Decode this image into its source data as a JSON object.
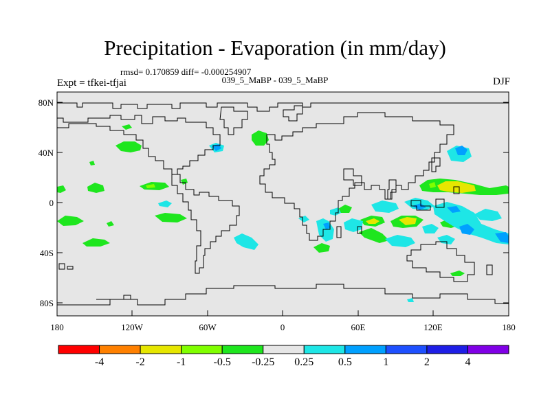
{
  "title": "Precipitation - Evaporation (in mm/day)",
  "stats": "rmsd= 0.170859 diff= -0.000254907",
  "subtitle": "039_5_MaBP - 039_5_MaBP",
  "experiment": "Expt = tfkei-tfjai",
  "season": "DJF",
  "y_ticks": [
    "80N",
    "40N",
    "0",
    "40S",
    "80S"
  ],
  "x_ticks": [
    "180",
    "120W",
    "60W",
    "0",
    "60E",
    "120E",
    "180"
  ],
  "colorbar": {
    "labels": [
      "-4",
      "-2",
      "-1",
      "-0.5",
      "-0.25",
      "0.25",
      "0.5",
      "1",
      "2",
      "4"
    ],
    "colors": [
      "#ff0000",
      "#ff8000",
      "#e6e600",
      "#80ff00",
      "#1ee61e",
      "#e6e6e6",
      "#1ee6e6",
      "#00a0ff",
      "#1e50ff",
      "#1e1ee6",
      "#8000e6"
    ]
  },
  "map_colors": {
    "background": "#e6e6e6",
    "coast": "#000000"
  }
}
